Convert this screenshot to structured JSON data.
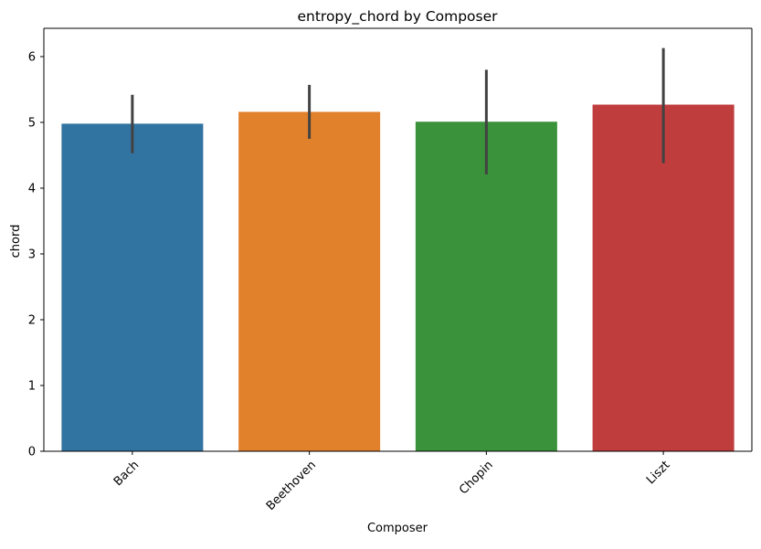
{
  "chart_data": {
    "type": "bar",
    "title": "entropy_chord by Composer",
    "xlabel": "Composer",
    "ylabel": "chord",
    "categories": [
      "Bach",
      "Beethoven",
      "Chopin",
      "Liszt"
    ],
    "values": [
      4.98,
      5.16,
      5.01,
      5.27
    ],
    "error_bars": {
      "lower": [
        4.53,
        4.75,
        4.21,
        4.38
      ],
      "upper": [
        5.42,
        5.57,
        5.8,
        6.13
      ]
    },
    "colors": [
      "#3274a1",
      "#e1812c",
      "#3a923a",
      "#c03d3e"
    ],
    "error_bar_color": "#424242",
    "ylim": [
      0,
      6.43
    ],
    "yticks": [
      "0",
      "1",
      "2",
      "3",
      "4",
      "5",
      "6"
    ],
    "ytick_values": [
      0,
      1,
      2,
      3,
      4,
      5,
      6
    ],
    "xtick_rotation_deg": 45,
    "grid": false,
    "legend": "none"
  }
}
